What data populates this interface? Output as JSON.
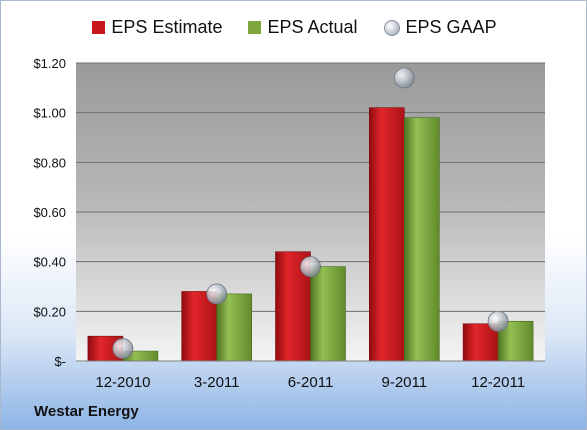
{
  "chart_data": {
    "type": "bar",
    "categories": [
      "12-2010",
      "3-2011",
      "6-2011",
      "9-2011",
      "12-2011"
    ],
    "series": [
      {
        "name": "EPS Estimate",
        "kind": "bar",
        "color": "#c0161b",
        "values": [
          0.1,
          0.28,
          0.44,
          1.02,
          0.15
        ]
      },
      {
        "name": "EPS Actual",
        "kind": "bar",
        "color": "#78a23a",
        "values": [
          0.04,
          0.27,
          0.38,
          0.98,
          0.16
        ]
      },
      {
        "name": "EPS GAAP",
        "kind": "marker",
        "color": "#b6bcc4",
        "values": [
          0.05,
          0.27,
          0.38,
          1.14,
          0.16
        ]
      }
    ],
    "ylim": [
      0,
      1.2
    ],
    "yticks": [
      {
        "value": 0,
        "label": "$-"
      },
      {
        "value": 0.2,
        "label": "$0.20"
      },
      {
        "value": 0.4,
        "label": "$0.40"
      },
      {
        "value": 0.6,
        "label": "$0.60"
      },
      {
        "value": 0.8,
        "label": "$0.80"
      },
      {
        "value": 1.0,
        "label": "$1.00"
      },
      {
        "value": 1.2,
        "label": "$1.20"
      }
    ],
    "grid": true,
    "legend_position": "top"
  },
  "legend": {
    "estimate_label": "EPS Estimate",
    "actual_label": "EPS Actual",
    "gaap_label": "EPS GAAP"
  },
  "footer": {
    "company": "Westar Energy"
  }
}
